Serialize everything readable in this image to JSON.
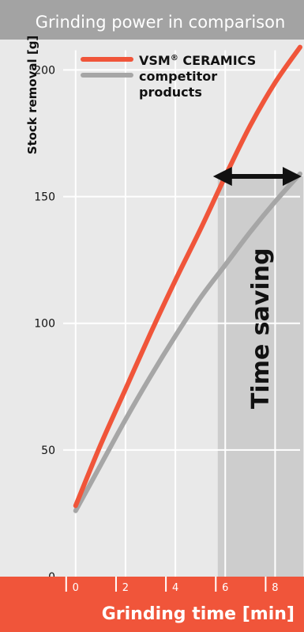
{
  "colors": {
    "header_bg": "#a3a3a3",
    "plot_bg": "#e9e9e9",
    "axis_band": "#f0553a",
    "vsm_line": "#f0553a",
    "competitor_line": "#a6a6a6",
    "saving_band": "#cdcdcd",
    "grid": "#ffffff",
    "text": "#111111"
  },
  "chart_data": {
    "type": "line",
    "title": "Grinding power in comparison",
    "xlabel": "Grinding time [min]",
    "ylabel": "Stock removal [g]",
    "xlim": [
      -0.5,
      9
    ],
    "ylim": [
      0,
      212
    ],
    "x_ticks": [
      0,
      2,
      4,
      6,
      8
    ],
    "y_ticks": [
      0,
      50,
      100,
      150,
      200
    ],
    "grid": true,
    "legend_position": "top",
    "series": [
      {
        "name": "VSM® CERAMICS",
        "color_key": "vsm_line",
        "x": [
          0,
          1,
          2,
          3,
          4,
          5,
          6,
          7,
          8,
          9
        ],
        "y": [
          28,
          52,
          74,
          96,
          117,
          137,
          158,
          178,
          195,
          209
        ]
      },
      {
        "name": "competitor products",
        "color_key": "competitor_line",
        "x": [
          0,
          1,
          2,
          3,
          4,
          5,
          6,
          7,
          8,
          9
        ],
        "y": [
          26,
          44,
          62,
          79,
          95,
          110,
          123,
          136,
          148,
          159
        ]
      }
    ],
    "annotation": {
      "label": "Time saving",
      "x_start": 5.7,
      "x_end": 9,
      "y": 158
    }
  }
}
